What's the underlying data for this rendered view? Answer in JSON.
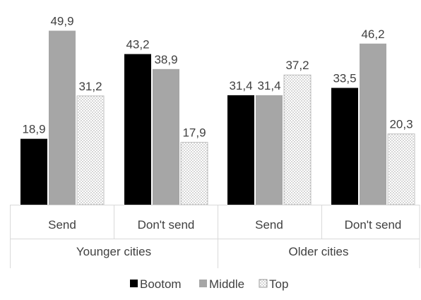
{
  "chart_data": {
    "type": "bar",
    "groups": [
      "Younger cities",
      "Older cities"
    ],
    "categories": [
      "Send",
      "Don't send",
      "Send",
      "Don't send"
    ],
    "series": [
      {
        "name": "Bootom",
        "values": [
          18.9,
          43.2,
          31.4,
          33.5
        ],
        "labels": [
          "18,9",
          "43,2",
          "31,4",
          "33,5"
        ],
        "color": "#000000",
        "pattern": "solid"
      },
      {
        "name": "Middle",
        "values": [
          49.9,
          38.9,
          31.4,
          46.2
        ],
        "labels": [
          "49,9",
          "38,9",
          "31,4",
          "46,2"
        ],
        "color": "#a6a6a6",
        "pattern": "solid"
      },
      {
        "name": "Top",
        "values": [
          31.2,
          17.9,
          37.2,
          20.3
        ],
        "labels": [
          "31,2",
          "17,9",
          "37,2",
          "20,3"
        ],
        "color": "#ffffff",
        "pattern": "dotted"
      }
    ],
    "ylim": [
      0,
      50
    ],
    "grid": false,
    "legend_position": "bottom",
    "title": "",
    "xlabel": "",
    "ylabel": ""
  }
}
